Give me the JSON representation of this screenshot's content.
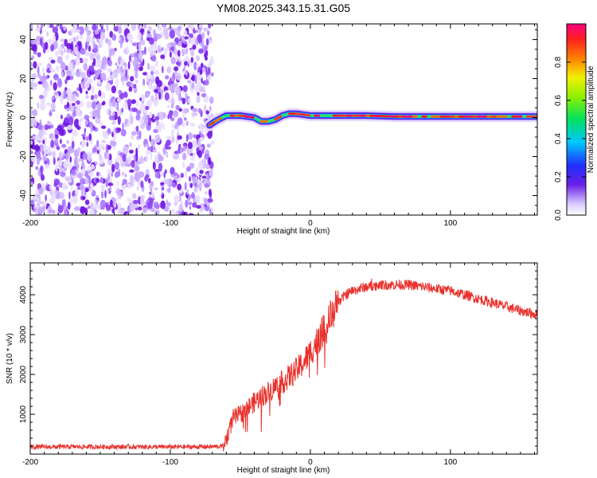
{
  "title": "YM08.2025.343.15.31.G05",
  "colors": {
    "snr_line": "#e8312c",
    "noise_purple": "#7a1fe6",
    "axis": "#000000"
  },
  "chart_data": [
    {
      "type": "heatmap",
      "xlabel": "Height of straight line (km)",
      "ylabel": "Frequency (Hz)",
      "xlim": [
        -200,
        162
      ],
      "ylim": [
        -50,
        48
      ],
      "xticks": [
        "-200",
        "-100",
        "0",
        "100"
      ],
      "xtick_values": [
        -200,
        -100,
        0,
        100
      ],
      "yticks": [
        "-40",
        "-20",
        "0",
        "20",
        "40"
      ],
      "ytick_values": [
        -40,
        -20,
        0,
        20,
        40
      ],
      "colorbar": {
        "label": "Normalized spectral amplitude",
        "range": [
          0,
          1
        ],
        "ticks": [
          "0.0",
          "0.2",
          "0.4",
          "0.6",
          "0.8"
        ],
        "tick_values": [
          0,
          0.2,
          0.4,
          0.6,
          0.8
        ]
      },
      "noise_region_x": [
        -200,
        -70
      ],
      "signal_trace": {
        "x": [
          -72,
          -68,
          -63,
          -60,
          -50,
          -40,
          -35,
          -30,
          -25,
          -20,
          -15,
          -10,
          0,
          20,
          40,
          60,
          80,
          100,
          130,
          162
        ],
        "freq": [
          -4,
          -2,
          0,
          1,
          1,
          0,
          -2,
          -2,
          -1,
          1,
          2,
          2,
          1,
          1,
          1,
          0.5,
          0.5,
          0.5,
          0.5,
          0.5
        ]
      }
    },
    {
      "type": "line",
      "xlabel": "Height of straight line (km)",
      "ylabel": "SNR (10 * v/v)",
      "xlim": [
        -200,
        162
      ],
      "ylim": [
        0,
        4800
      ],
      "xticks": [
        "-200",
        "-100",
        "0",
        "100"
      ],
      "xtick_values": [
        -200,
        -100,
        0,
        100
      ],
      "yticks": [
        "1000",
        "2000",
        "3000",
        "4000"
      ],
      "ytick_values": [
        1000,
        2000,
        3000,
        4000
      ],
      "series": [
        {
          "name": "SNR",
          "x": [
            -200,
            -150,
            -100,
            -70,
            -62,
            -58,
            -55,
            -50,
            -45,
            -40,
            -35,
            -30,
            -25,
            -20,
            -15,
            -10,
            -5,
            0,
            5,
            10,
            15,
            20,
            25,
            30,
            35,
            40,
            50,
            60,
            70,
            80,
            90,
            100,
            110,
            120,
            130,
            140,
            150,
            162
          ],
          "y": [
            180,
            185,
            180,
            185,
            200,
            600,
            900,
            1000,
            1150,
            1300,
            1450,
            1550,
            1700,
            1800,
            1950,
            2100,
            2300,
            2550,
            2850,
            3150,
            3500,
            3800,
            4000,
            4100,
            4150,
            4200,
            4250,
            4250,
            4250,
            4200,
            4150,
            4100,
            4000,
            3900,
            3800,
            3700,
            3600,
            3500
          ]
        }
      ]
    }
  ]
}
